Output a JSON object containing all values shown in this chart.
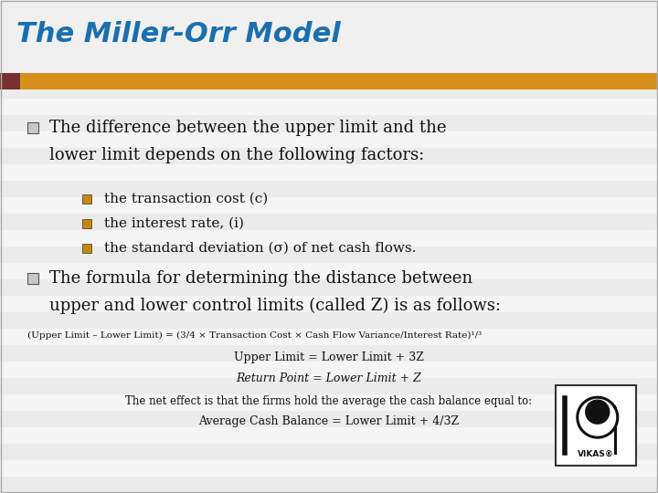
{
  "title": "The Miller-Orr Model",
  "title_color": "#1a6faf",
  "title_fontsize": 22,
  "bg_color": "#f2f2f2",
  "header_bar_color": "#d4901a",
  "header_bar_accent": "#7b3030",
  "bullet1_text1": "The difference between the upper limit and the",
  "bullet1_text2": "lower limit depends on the following factors:",
  "sub_bullets": [
    "the transaction cost (c)",
    "the interest rate, (i)",
    "the standard deviation (σ) of net cash flows."
  ],
  "bullet2_text1": "The formula for determining the distance between",
  "bullet2_text2": "upper and lower control limits (called Z) is as follows:",
  "formula_main": "(Upper Limit – Lower Limit) = (3/4 × Transaction Cost × Cash Flow Variance/Interest Rate)¹ᐟ³",
  "formula_line1": "Upper Limit = Lower Limit + 3Z",
  "formula_line2": "Return Point = Lower Limit + Z",
  "formula_note": "The net effect is that the firms hold the average the cash balance equal to:",
  "formula_line3": "Average Cash Balance = Lower Limit + 4/3Z",
  "bullet_square_color": "#c8c8c8",
  "sub_bullet_square_color": "#c8860a",
  "text_color": "#111111",
  "formula_text_color": "#111111",
  "stripe_colors": [
    "#ebebeb",
    "#f5f5f5"
  ],
  "content_bg": "#f8f8f0"
}
